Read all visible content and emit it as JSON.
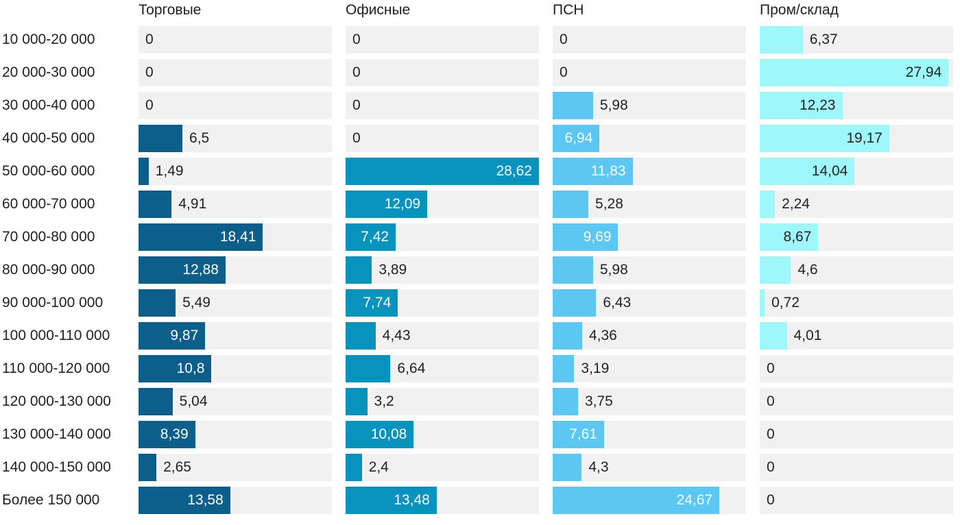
{
  "chart_data": {
    "type": "bar",
    "orientation": "horizontal",
    "layout": "small-multiples",
    "categories": [
      "10 000-20 000",
      "20 000-30 000",
      "30 000-40 000",
      "40 000-50 000",
      "50 000-60 000",
      "60 000-70 000",
      "70 000-80 000",
      "80 000-90 000",
      "90 000-100 000",
      "100 000-110 000",
      "110 000-120 000",
      "120 000-130 000",
      "130 000-140 000",
      "140 000-150 000",
      "Более 150 000"
    ],
    "series": [
      {
        "name": "Торговые",
        "color": "#0c5f8a",
        "value_labels": [
          "0",
          "0",
          "0",
          "6,5",
          "1,49",
          "4,91",
          "18,41",
          "12,88",
          "5,49",
          "9,87",
          "10,8",
          "5,04",
          "8,39",
          "2,65",
          "13,58"
        ],
        "values": [
          0,
          0,
          0,
          6.5,
          1.49,
          4.91,
          18.41,
          12.88,
          5.49,
          9.87,
          10.8,
          5.04,
          8.39,
          2.65,
          13.58
        ]
      },
      {
        "name": "Офисные",
        "color": "#0793bd",
        "value_labels": [
          "0",
          "0",
          "0",
          "0",
          "28,62",
          "12,09",
          "7,42",
          "3,89",
          "7,74",
          "4,43",
          "6,64",
          "3,2",
          "10,08",
          "2,4",
          "13,48"
        ],
        "values": [
          0,
          0,
          0,
          0,
          28.62,
          12.09,
          7.42,
          3.89,
          7.74,
          4.43,
          6.64,
          3.2,
          10.08,
          2.4,
          13.48
        ]
      },
      {
        "name": "ПСН",
        "color": "#5cc7f3",
        "value_labels": [
          "0",
          "0",
          "5,98",
          "6,94",
          "11,83",
          "5,28",
          "9,69",
          "5,98",
          "6,43",
          "4,36",
          "3,19",
          "3,75",
          "7,61",
          "4,3",
          "24,67"
        ],
        "values": [
          0,
          0,
          5.98,
          6.94,
          11.83,
          5.28,
          9.69,
          5.98,
          6.43,
          4.36,
          3.19,
          3.75,
          7.61,
          4.3,
          24.67
        ]
      },
      {
        "name": "Пром/склад",
        "color": "#9ef8fb",
        "value_labels": [
          "6,37",
          "27,94",
          "12,23",
          "19,17",
          "14,04",
          "2,24",
          "8,67",
          "4,6",
          "0,72",
          "4,01",
          "0",
          "0",
          "0",
          "0",
          "0"
        ],
        "values": [
          6.37,
          27.94,
          12.23,
          19.17,
          14.04,
          2.24,
          8.67,
          4.6,
          0.72,
          4.01,
          0,
          0,
          0,
          0,
          0
        ]
      }
    ],
    "xlim": [
      0,
      28.62
    ],
    "grid": false,
    "legend": "none"
  }
}
